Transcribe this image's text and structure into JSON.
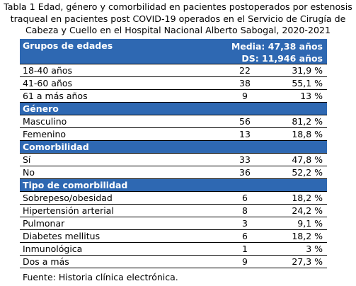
{
  "caption": "Tabla 1 Edad, género y comorbilidad en pacientes postoperados por estenosis traqueal en pacientes post COVID-19 operados en el Servicio de Cirugía de Cabeza y Cuello en el Hospital Nacional Alberto Sabogal, 2020-2021",
  "age_header": {
    "label": "Grupos de edades",
    "mean": "Media: 47,38 años",
    "sd": "DS: 11,946 años"
  },
  "age_rows": [
    {
      "label": "18-40 años",
      "n": "22",
      "pct": "31,9 %"
    },
    {
      "label": "41-60 años",
      "n": "38",
      "pct": "55,1 %"
    },
    {
      "label": "61 a más años",
      "n": "9",
      "pct": "13 %"
    }
  ],
  "gender_header": "Género",
  "gender_rows": [
    {
      "label": "Masculino",
      "n": "56",
      "pct": "81,2 %"
    },
    {
      "label": "Femenino",
      "n": "13",
      "pct": "18,8 %"
    }
  ],
  "comorbidity_header": "Comorbilidad",
  "comorbidity_rows": [
    {
      "label": "Sí",
      "n": "33",
      "pct": "47,8 %"
    },
    {
      "label": "No",
      "n": "36",
      "pct": "52,2 %"
    }
  ],
  "type_header": "Tipo de comorbilidad",
  "type_rows": [
    {
      "label": "Sobrepeso/obesidad",
      "n": "6",
      "pct": "18,2 %"
    },
    {
      "label": "Hipertensión arterial",
      "n": "8",
      "pct": "24,2 %"
    },
    {
      "label": "Pulmonar",
      "n": "3",
      "pct": "9,1 %"
    },
    {
      "label": "Diabetes mellitus",
      "n": "6",
      "pct": "18,2 %"
    },
    {
      "label": "Inmunológica",
      "n": "1",
      "pct": "3 %"
    },
    {
      "label": "Dos a más",
      "n": "9",
      "pct": "27,3 %"
    }
  ],
  "source": "Fuente: Historia clínica electrónica.",
  "colors": {
    "header_bg": "#2e68b2",
    "header_text": "#ffffff"
  }
}
